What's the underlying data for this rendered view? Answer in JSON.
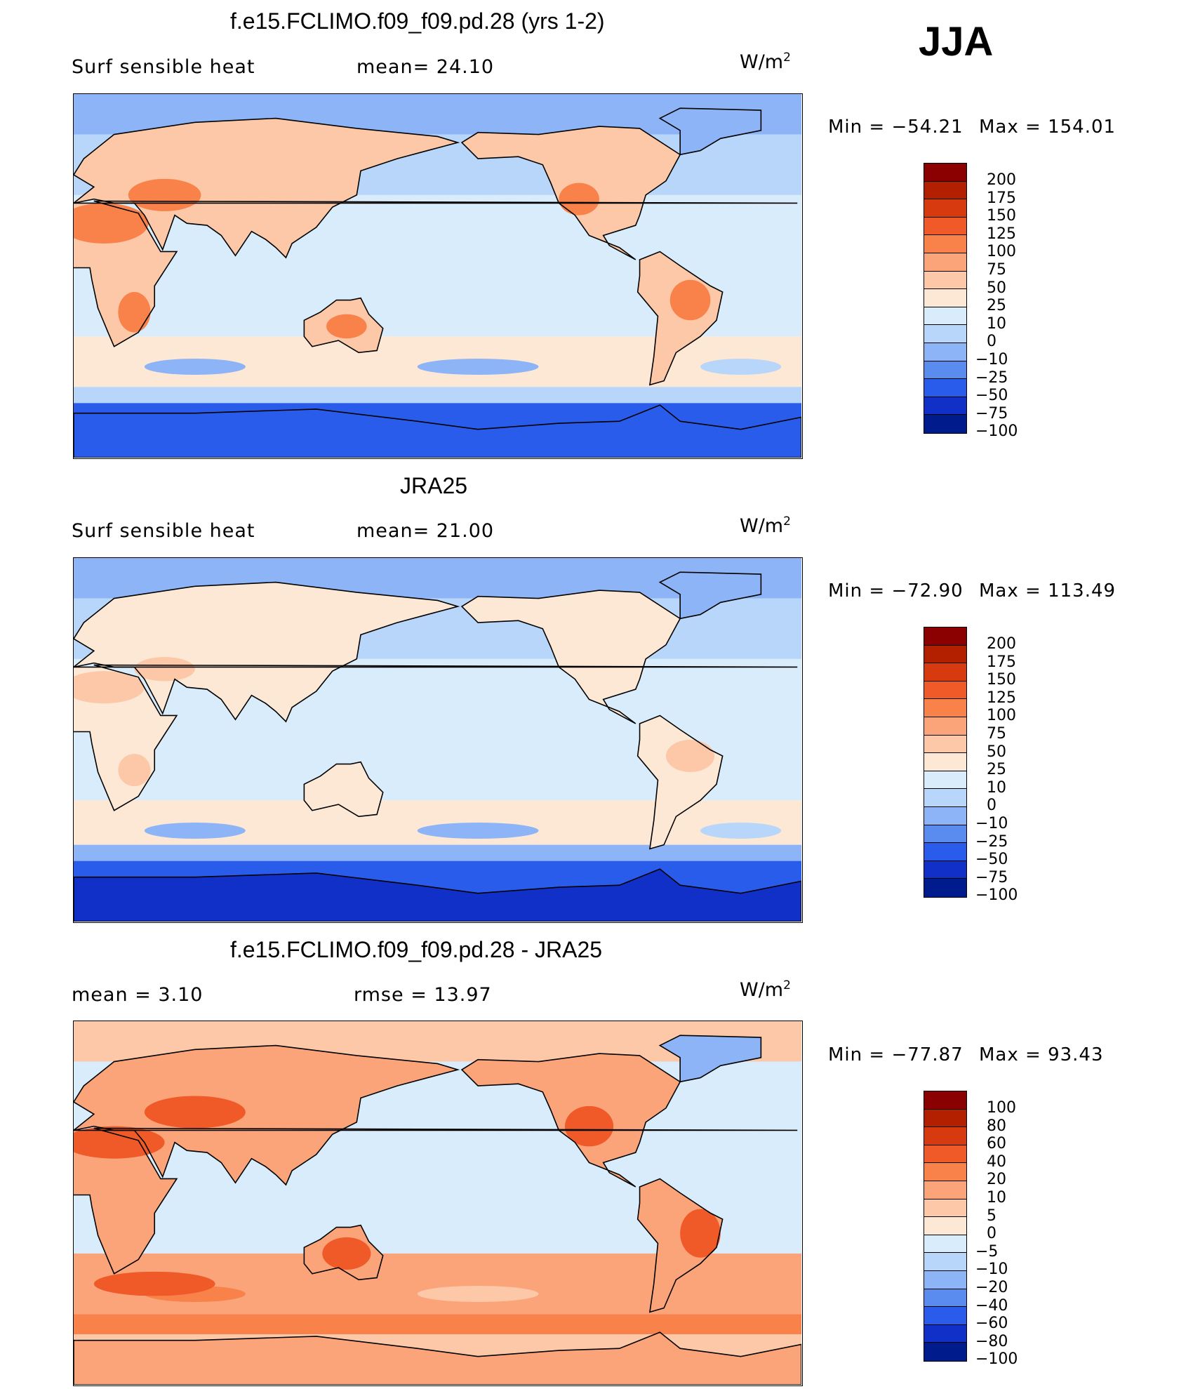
{
  "season": "JJA",
  "units": {
    "base": "W/m",
    "exp": "2"
  },
  "chart_data": [
    {
      "type": "heatmap",
      "title": "f.e15.FCLIMO.f09_f09.pd.28 (yrs 1-2)",
      "left_label": "Surf  sensible  heat",
      "stat1": "mean=   24.10",
      "stat2": "",
      "min_label": "Min  =  −54.21",
      "max_label": "Max  =  154.01",
      "min": -54.21,
      "max": 154.01,
      "mean": 24.1,
      "colorbar_levels": [
        "200",
        "175",
        "150",
        "125",
        "100",
        "75",
        "50",
        "25",
        "10",
        "0",
        "−10",
        "−25",
        "−50",
        "−75",
        "−100"
      ],
      "field": "model"
    },
    {
      "type": "heatmap",
      "title": "JRA25",
      "left_label": "Surf  sensible  heat",
      "stat1": "mean=   21.00",
      "stat2": "",
      "min_label": "Min  =  −72.90",
      "max_label": "Max  =  113.49",
      "min": -72.9,
      "max": 113.49,
      "mean": 21.0,
      "colorbar_levels": [
        "200",
        "175",
        "150",
        "125",
        "100",
        "75",
        "50",
        "25",
        "10",
        "0",
        "−10",
        "−25",
        "−50",
        "−75",
        "−100"
      ],
      "field": "obs"
    },
    {
      "type": "heatmap",
      "title": "f.e15.FCLIMO.f09_f09.pd.28 - JRA25",
      "left_label": "mean  =     3.10",
      "stat1": "",
      "stat2": "rmse  =    13.97",
      "min_label": "Min  =  −77.87",
      "max_label": "Max  =   93.43",
      "min": -77.87,
      "max": 93.43,
      "mean": 3.1,
      "rmse": 13.97,
      "colorbar_levels": [
        "100",
        "80",
        "60",
        "40",
        "20",
        "10",
        "5",
        "0",
        "−5",
        "−10",
        "−20",
        "−40",
        "−60",
        "−80",
        "−100"
      ],
      "field": "diff"
    }
  ],
  "palette": [
    "#8b0000",
    "#b22000",
    "#d83a10",
    "#f05a28",
    "#f8824a",
    "#fba47a",
    "#fcc8a8",
    "#fde8d6",
    "#d8ecfc",
    "#b8d6fa",
    "#8cb4f6",
    "#5a8cf0",
    "#2a5cec",
    "#1030c8",
    "#001c8c"
  ]
}
